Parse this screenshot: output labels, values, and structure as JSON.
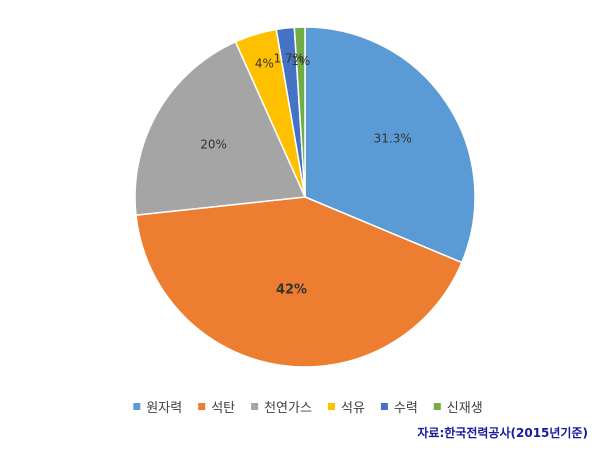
{
  "chart_data": {
    "type": "pie",
    "categories": [
      "원자력",
      "석탄",
      "천연가스",
      "석유",
      "수력",
      "신재생"
    ],
    "values": [
      31.3,
      42,
      20,
      4,
      1.7,
      1
    ],
    "labels": [
      "31.3%",
      "42%",
      "20%",
      "4%",
      "1.7%",
      "1%"
    ],
    "colors": [
      "#5b9bd5",
      "#ed7d31",
      "#a5a5a5",
      "#ffc000",
      "#4472c4",
      "#70ad47"
    ],
    "start_angle_deg": 0,
    "direction": "clockwise",
    "legend_position": "bottom",
    "source": "자료:한국전력공사(2015년기준)"
  }
}
